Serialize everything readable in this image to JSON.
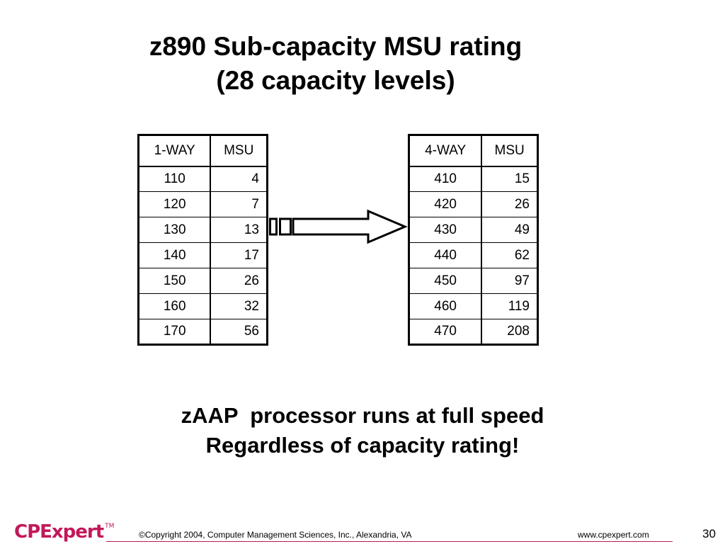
{
  "title": {
    "line1": "z890 Sub-capacity MSU rating",
    "line2": "(28 capacity levels)"
  },
  "table_left": {
    "headers": [
      "1-WAY",
      "MSU"
    ],
    "rows": [
      [
        "110",
        "4"
      ],
      [
        "120",
        "7"
      ],
      [
        "130",
        "13"
      ],
      [
        "140",
        "17"
      ],
      [
        "150",
        "26"
      ],
      [
        "160",
        "32"
      ],
      [
        "170",
        "56"
      ]
    ]
  },
  "table_right": {
    "headers": [
      "4-WAY",
      "MSU"
    ],
    "rows": [
      [
        "410",
        "15"
      ],
      [
        "420",
        "26"
      ],
      [
        "430",
        "49"
      ],
      [
        "440",
        "62"
      ],
      [
        "450",
        "97"
      ],
      [
        "460",
        "119"
      ],
      [
        "470",
        "208"
      ]
    ]
  },
  "note": {
    "line1": "zAAP  processor runs at full speed",
    "line2": "Regardless of capacity rating!"
  },
  "footer": {
    "logo": "CPExpert",
    "trademark": "TM",
    "copyright": "©Copyright 2004, Computer Management Sciences, Inc., Alexandria, VA",
    "website": "www.cpexpert.com",
    "page_number": "30"
  },
  "colors": {
    "brand": "#c2185b",
    "text": "#000000",
    "background": "#ffffff"
  },
  "icons": {
    "arrow": "right-arrow-icon"
  }
}
